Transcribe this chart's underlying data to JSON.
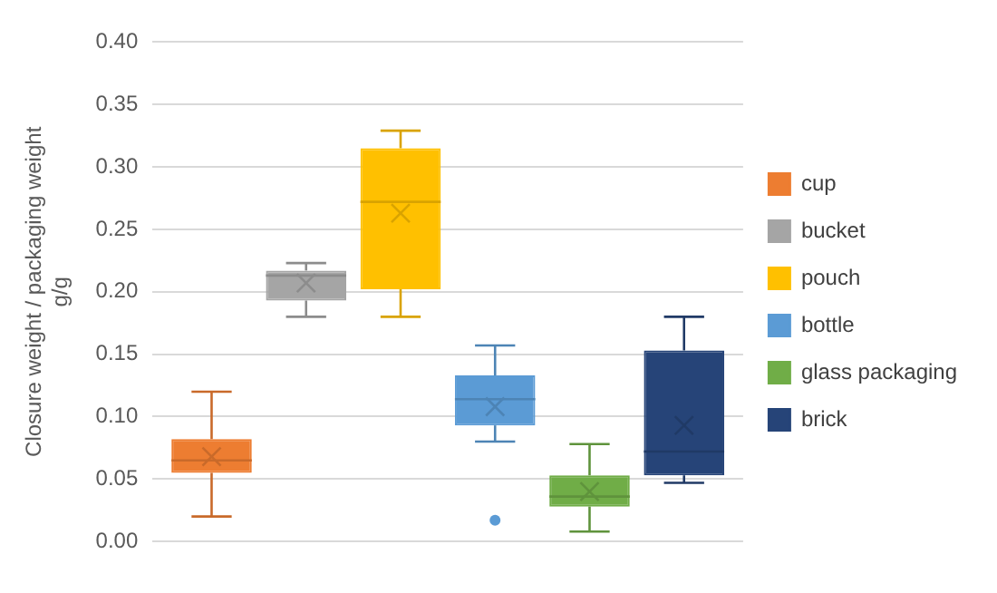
{
  "chart_data": {
    "type": "box",
    "ylabel": "Closure weight / packaging weight\ng/g",
    "categories": [
      null
    ],
    "ylim": [
      0,
      0.4
    ],
    "yticks": [
      {
        "value": 0,
        "label": "0.00"
      },
      {
        "value": 0.05,
        "label": "0.05"
      },
      {
        "value": 0.1,
        "label": "0.10"
      },
      {
        "value": 0.15,
        "label": "0.15"
      },
      {
        "value": 0.2,
        "label": "0.20"
      },
      {
        "value": 0.25,
        "label": "0.25"
      },
      {
        "value": 0.3,
        "label": "0.30"
      },
      {
        "value": 0.35,
        "label": "0.35"
      },
      {
        "value": 0.4,
        "label": "0.40"
      }
    ],
    "grid": "y",
    "legend": "right",
    "series": [
      {
        "name": "cup",
        "color": "#ed7d31",
        "boxes": [
          {
            "low": 0.02,
            "q1": 0.055,
            "median": 0.065,
            "q3": 0.082,
            "high": 0.12,
            "mean": 0.068
          }
        ]
      },
      {
        "name": "bucket",
        "color": "#a5a5a5",
        "boxes": [
          {
            "low": 0.18,
            "q1": 0.193,
            "median": 0.213,
            "q3": 0.217,
            "high": 0.223,
            "mean": 0.207
          }
        ]
      },
      {
        "name": "pouch",
        "color": "#ffc000",
        "boxes": [
          {
            "low": 0.18,
            "q1": 0.202,
            "median": 0.272,
            "q3": 0.315,
            "high": 0.329,
            "mean": 0.263
          }
        ]
      },
      {
        "name": "bottle",
        "color": "#5b9bd5",
        "boxes": [
          {
            "low": 0.08,
            "q1": 0.093,
            "median": 0.114,
            "q3": 0.133,
            "high": 0.157,
            "mean": 0.108,
            "outliers": [
              0.017
            ]
          }
        ]
      },
      {
        "name": "glass packaging",
        "color": "#70ad47",
        "boxes": [
          {
            "low": 0.008,
            "q1": 0.028,
            "median": 0.036,
            "q3": 0.053,
            "high": 0.078,
            "mean": 0.04
          }
        ]
      },
      {
        "name": "brick",
        "color": "#264478",
        "boxes": [
          {
            "low": 0.047,
            "q1": 0.053,
            "median": 0.072,
            "q3": 0.153,
            "high": 0.18,
            "mean": 0.093
          }
        ]
      }
    ]
  }
}
